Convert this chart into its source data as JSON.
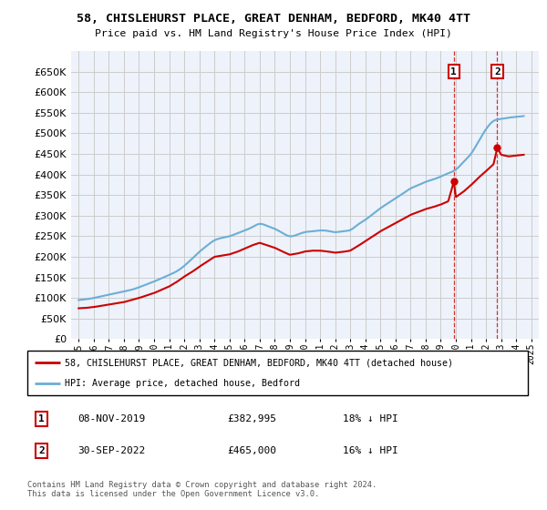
{
  "title": "58, CHISLEHURST PLACE, GREAT DENHAM, BEDFORD, MK40 4TT",
  "subtitle": "Price paid vs. HM Land Registry's House Price Index (HPI)",
  "legend_line1": "58, CHISLEHURST PLACE, GREAT DENHAM, BEDFORD, MK40 4TT (detached house)",
  "legend_line2": "HPI: Average price, detached house, Bedford",
  "transaction1_date": "08-NOV-2019",
  "transaction1_price": "£382,995",
  "transaction1_hpi": "18% ↓ HPI",
  "transaction1_x": 2019.87,
  "transaction1_y": 382995,
  "transaction2_date": "30-SEP-2022",
  "transaction2_price": "£465,000",
  "transaction2_hpi": "16% ↓ HPI",
  "transaction2_x": 2022.75,
  "transaction2_y": 465000,
  "footnote": "Contains HM Land Registry data © Crown copyright and database right 2024.\nThis data is licensed under the Open Government Licence v3.0.",
  "hpi_color": "#6baed6",
  "price_color": "#cc0000",
  "vline_color": "#cc0000",
  "grid_color": "#cccccc",
  "background_color": "#ffffff",
  "plot_bg_color": "#eef2fa",
  "ylim": [
    0,
    700000
  ],
  "yticks": [
    0,
    50000,
    100000,
    150000,
    200000,
    250000,
    300000,
    350000,
    400000,
    450000,
    500000,
    550000,
    600000,
    650000
  ],
  "xlim_start": 1994.5,
  "xlim_end": 2025.5,
  "hpi_years": [
    1995,
    1995.5,
    1996,
    1996.5,
    1997,
    1997.5,
    1998,
    1998.5,
    1999,
    1999.5,
    2000,
    2000.5,
    2001,
    2001.5,
    2002,
    2002.5,
    2003,
    2003.5,
    2004,
    2004.5,
    2005,
    2005.5,
    2006,
    2006.5,
    2007,
    2007.5,
    2008,
    2008.5,
    2009,
    2009.5,
    2010,
    2010.5,
    2011,
    2011.5,
    2012,
    2012.5,
    2013,
    2013.5,
    2014,
    2014.5,
    2015,
    2015.5,
    2016,
    2016.5,
    2017,
    2017.5,
    2018,
    2018.5,
    2019,
    2019.5,
    2020,
    2020.5,
    2021,
    2021.5,
    2022,
    2022.5,
    2023,
    2023.5,
    2024,
    2024.5
  ],
  "hpi_vals": [
    95000,
    97000,
    100000,
    104000,
    108000,
    112000,
    116000,
    120000,
    126000,
    133000,
    140000,
    148000,
    156000,
    165000,
    178000,
    195000,
    212000,
    227000,
    240000,
    246000,
    250000,
    257000,
    264000,
    272000,
    280000,
    275000,
    268000,
    258000,
    250000,
    254000,
    260000,
    262000,
    264000,
    263000,
    260000,
    262000,
    265000,
    278000,
    290000,
    304000,
    318000,
    330000,
    342000,
    354000,
    366000,
    374000,
    382000,
    388000,
    395000,
    403000,
    412000,
    430000,
    450000,
    480000,
    510000,
    530000,
    535000,
    538000,
    540000,
    542000
  ],
  "price_years": [
    1995,
    1995.5,
    1996,
    1996.5,
    1997,
    1997.5,
    1998,
    1998.5,
    1999,
    1999.5,
    2000,
    2000.5,
    2001,
    2001.5,
    2002,
    2002.5,
    2003,
    2003.5,
    2004,
    2004.5,
    2005,
    2005.5,
    2006,
    2006.5,
    2007,
    2007.5,
    2008,
    2008.5,
    2009,
    2009.5,
    2010,
    2010.5,
    2011,
    2011.5,
    2012,
    2012.5,
    2013,
    2013.5,
    2014,
    2014.5,
    2015,
    2015.5,
    2016,
    2016.5,
    2017,
    2017.5,
    2018,
    2018.5,
    2019,
    2019.5,
    2019.87,
    2020,
    2020.5,
    2021,
    2021.5,
    2022,
    2022.5,
    2022.75,
    2023,
    2023.5,
    2024,
    2024.5
  ],
  "price_vals": [
    75000,
    76000,
    78000,
    81000,
    84000,
    87000,
    90000,
    95000,
    100000,
    106000,
    112000,
    120000,
    128000,
    139000,
    152000,
    163000,
    176000,
    188000,
    200000,
    203000,
    206000,
    212000,
    220000,
    228000,
    234000,
    228000,
    222000,
    213000,
    205000,
    208000,
    213000,
    215000,
    215000,
    213000,
    210000,
    212000,
    215000,
    226000,
    238000,
    250000,
    262000,
    272000,
    282000,
    292000,
    302000,
    309000,
    316000,
    321000,
    327000,
    335000,
    382995,
    345000,
    358000,
    374000,
    392000,
    408000,
    425000,
    465000,
    448000,
    444000,
    446000,
    448000
  ]
}
